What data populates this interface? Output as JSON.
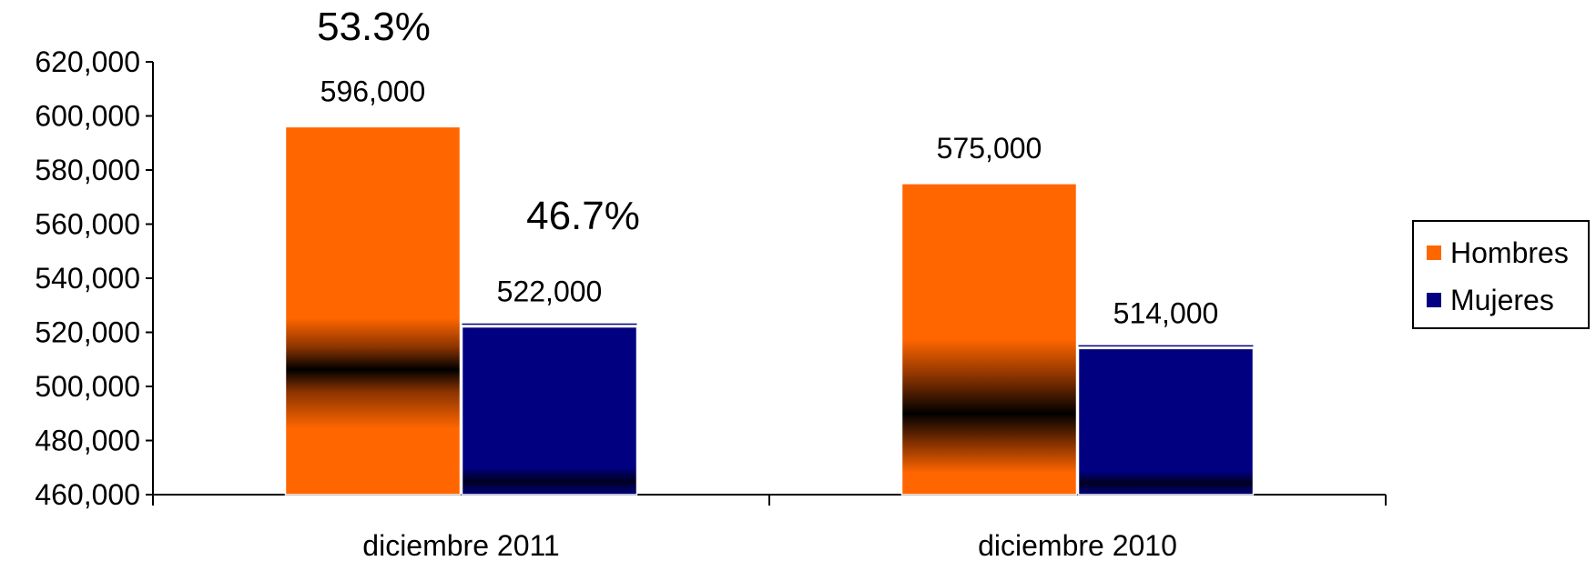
{
  "chart_data": {
    "type": "bar",
    "categories": [
      "diciembre 2011",
      "diciembre 2010"
    ],
    "series": [
      {
        "name": "Hombres",
        "values": [
          596000,
          575000
        ],
        "color": "#ff6600",
        "data_labels": [
          "596,000",
          "575,000"
        ]
      },
      {
        "name": "Mujeres",
        "values": [
          522000,
          514000
        ],
        "color": "#000080",
        "data_labels": [
          "522,000",
          "514,000"
        ]
      }
    ],
    "ylim": [
      460000,
      620000
    ],
    "y_ticks": [
      "460,000",
      "480,000",
      "500,000",
      "520,000",
      "540,000",
      "560,000",
      "580,000",
      "600,000",
      "620,000"
    ],
    "annotations": [
      "53.3%",
      "46.7%"
    ],
    "title": "",
    "xlabel": "",
    "ylabel": "",
    "grid": false,
    "legend_position": "right"
  }
}
